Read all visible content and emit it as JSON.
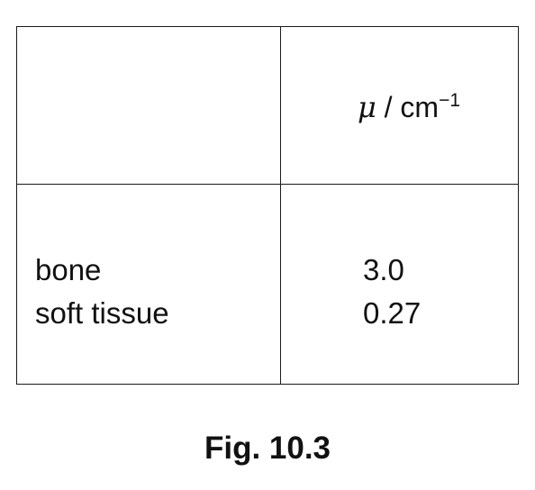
{
  "table": {
    "header": {
      "symbol": "μ",
      "unit_text": " / cm",
      "unit_exponent": "−1"
    },
    "rows": [
      {
        "material": "bone",
        "value": "3.0"
      },
      {
        "material": "soft tissue",
        "value": "0.27"
      }
    ]
  },
  "caption": "Fig. 10.3"
}
